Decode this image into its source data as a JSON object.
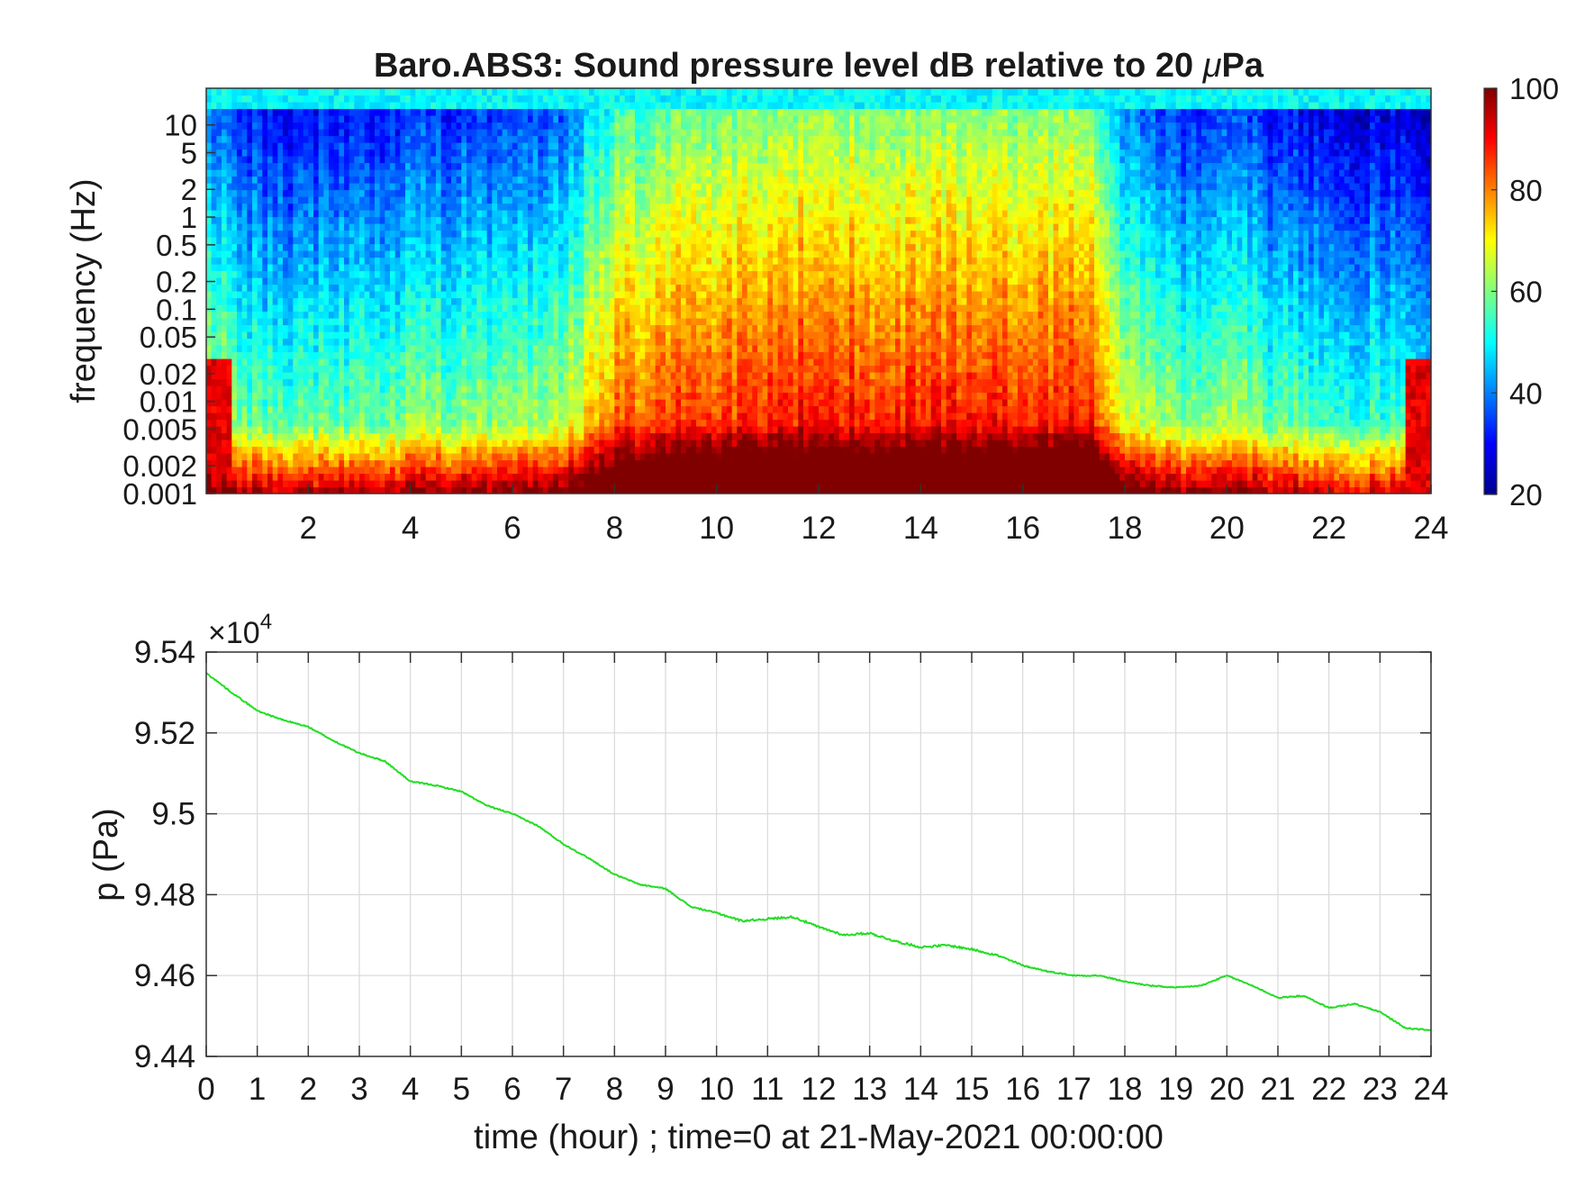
{
  "chart_data": [
    {
      "type": "heatmap",
      "title": "Baro.ABS3: Sound pressure level dB relative to 20 μPa",
      "title_prefix": "Baro.ABS3: Sound pressure level dB relative to 20 ",
      "title_mu": "μ",
      "title_suffix": "Pa",
      "xlabel": "",
      "ylabel": "frequency (Hz)",
      "xlim": [
        0,
        24
      ],
      "ylim": [
        0.001,
        25
      ],
      "yscale": "log",
      "x_ticks": [
        2,
        4,
        6,
        8,
        10,
        12,
        14,
        16,
        18,
        20,
        22,
        24
      ],
      "x_tick_labels": [
        "2",
        "4",
        "6",
        "8",
        "10",
        "12",
        "14",
        "16",
        "18",
        "20",
        "22",
        "24"
      ],
      "y_ticks": [
        0.001,
        0.002,
        0.005,
        0.01,
        0.02,
        0.05,
        0.1,
        0.2,
        0.5,
        1,
        2,
        5,
        10
      ],
      "y_tick_labels": [
        "0.001",
        "0.002",
        "0.005",
        "0.01",
        "0.02",
        "0.05",
        "0.1",
        "0.2",
        "0.5",
        "1",
        "2",
        "5",
        "10"
      ],
      "colorbar": {
        "colormap": "jet",
        "clim": [
          20,
          100
        ],
        "ticks": [
          20,
          40,
          60,
          80,
          100
        ],
        "tick_labels": [
          "20",
          "40",
          "60",
          "80",
          "100"
        ]
      },
      "activity_profile": {
        "hours": [
          0,
          1,
          2,
          3,
          4,
          5,
          6,
          7,
          7.5,
          8,
          9,
          10,
          11,
          12,
          13,
          14,
          15,
          16,
          17,
          17.5,
          18,
          19,
          20,
          21,
          22,
          23,
          24
        ],
        "level_db": [
          65,
          56,
          55,
          57,
          58,
          59,
          60,
          64,
          70,
          80,
          83,
          84,
          86,
          88,
          86,
          86,
          87,
          86,
          87,
          84,
          66,
          58,
          62,
          55,
          54,
          53,
          50
        ]
      }
    },
    {
      "type": "line",
      "title": "",
      "xlabel": "time (hour) ; time=0 at 21-May-2021 00:00:00",
      "ylabel": "p (Pa)",
      "xlim": [
        0,
        24
      ],
      "ylim": [
        94400,
        95400
      ],
      "grid": true,
      "y_exponent_label": "×10",
      "y_exponent_power": "4",
      "x_ticks": [
        0,
        1,
        2,
        3,
        4,
        5,
        6,
        7,
        8,
        9,
        10,
        11,
        12,
        13,
        14,
        15,
        16,
        17,
        18,
        19,
        20,
        21,
        22,
        23,
        24
      ],
      "x_tick_labels": [
        "0",
        "1",
        "2",
        "3",
        "4",
        "5",
        "6",
        "7",
        "8",
        "9",
        "10",
        "11",
        "12",
        "13",
        "14",
        "15",
        "16",
        "17",
        "18",
        "19",
        "20",
        "21",
        "22",
        "23",
        "24"
      ],
      "y_ticks": [
        94400,
        94600,
        94800,
        95000,
        95200,
        95400
      ],
      "y_tick_labels": [
        "9.44",
        "9.46",
        "9.48",
        "9.5",
        "9.52",
        "9.54"
      ],
      "line_color": "#22dd22",
      "series": [
        {
          "x": [
            0,
            0.5,
            1,
            1.5,
            2,
            2.5,
            3,
            3.5,
            4,
            4.5,
            5,
            5.5,
            6,
            6.5,
            7,
            7.5,
            8,
            8.5,
            9,
            9.5,
            10,
            10.5,
            11,
            11.5,
            12,
            12.5,
            13,
            13.5,
            14,
            14.5,
            15,
            15.5,
            16,
            16.5,
            17,
            17.5,
            18,
            18.5,
            19,
            19.5,
            20,
            20.5,
            21,
            21.5,
            22,
            22.5,
            23,
            23.5,
            24
          ],
          "y": [
            95348,
            95300,
            95255,
            95232,
            95215,
            95180,
            95150,
            95130,
            95080,
            95070,
            95055,
            95020,
            95000,
            94970,
            94925,
            94890,
            94850,
            94825,
            94815,
            94770,
            94755,
            94735,
            94740,
            94745,
            94720,
            94700,
            94705,
            94685,
            94670,
            94675,
            94665,
            94650,
            94625,
            94610,
            94600,
            94600,
            94585,
            94575,
            94570,
            94575,
            94600,
            94575,
            94545,
            94550,
            94520,
            94530,
            94510,
            94470,
            94465
          ]
        }
      ]
    }
  ]
}
